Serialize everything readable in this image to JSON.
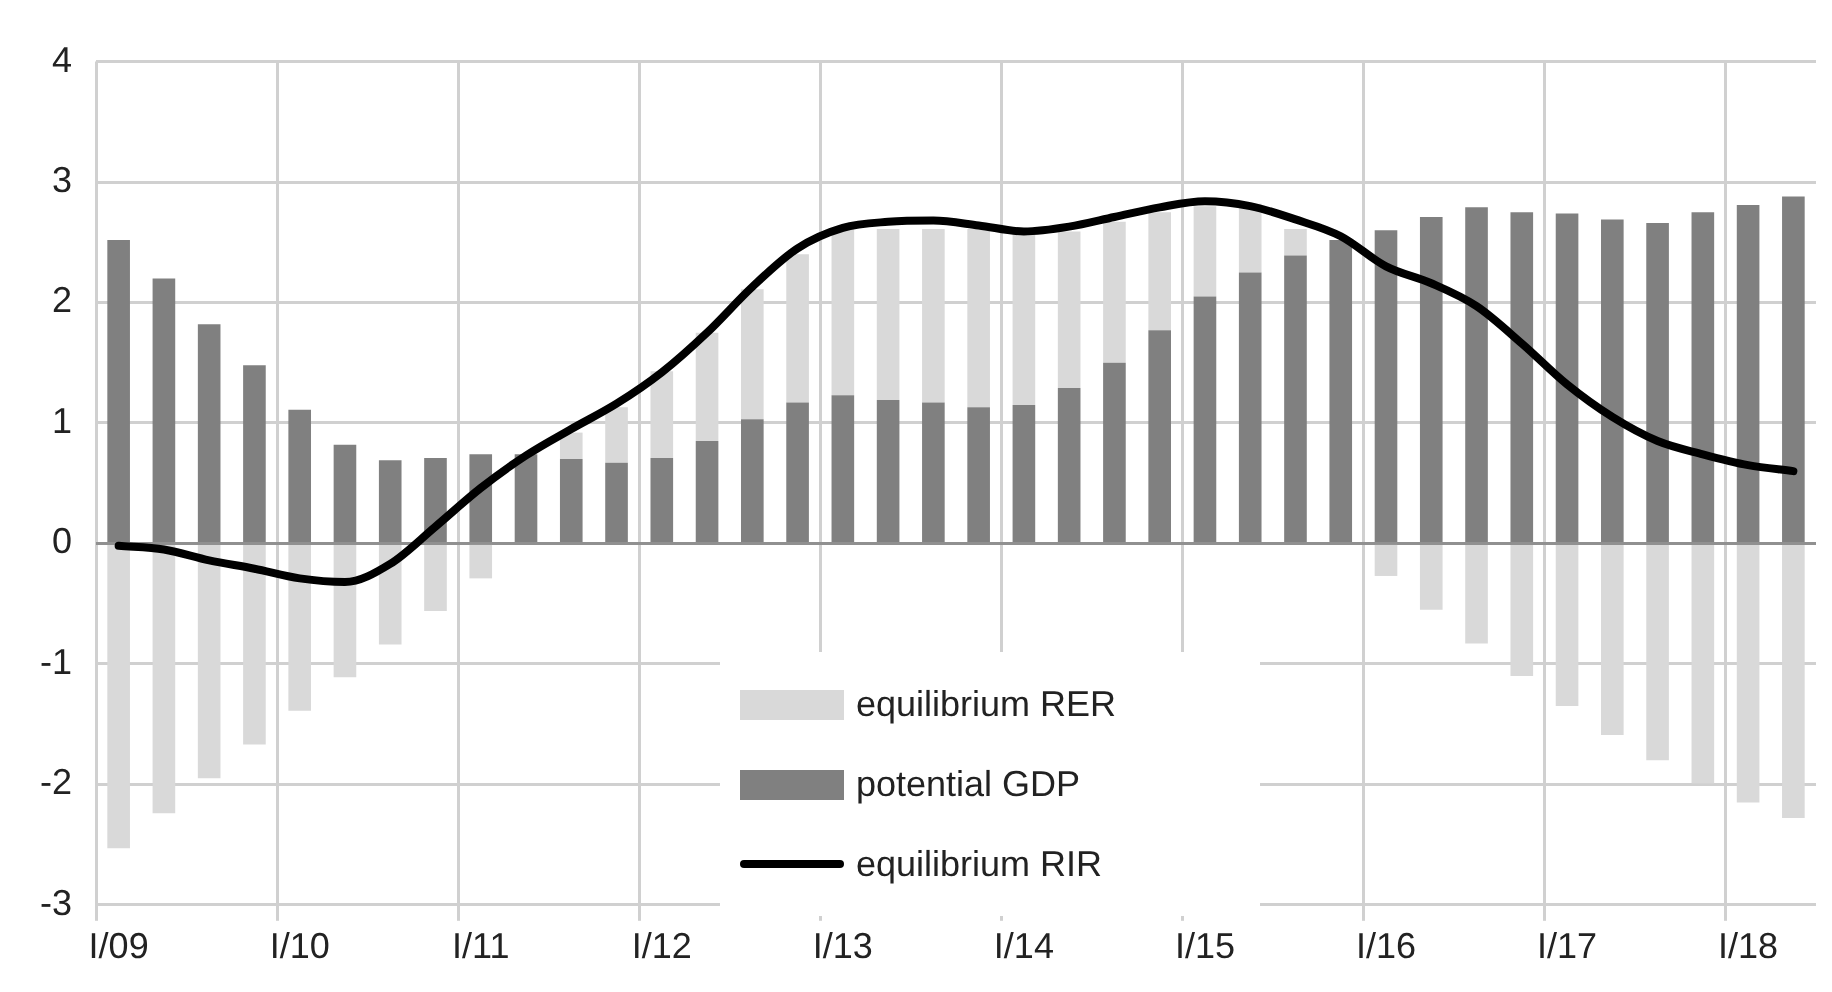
{
  "chart_data": {
    "type": "bar",
    "stacked": true,
    "categories": [
      "I/09",
      null,
      null,
      null,
      "I/10",
      null,
      null,
      null,
      "I/11",
      null,
      null,
      null,
      "I/12",
      null,
      null,
      null,
      "I/13",
      null,
      null,
      null,
      "I/14",
      null,
      null,
      null,
      "I/15",
      null,
      null,
      null,
      "I/16",
      null,
      null,
      null,
      "I/17",
      null,
      null,
      null,
      "I/18",
      null
    ],
    "series": [
      {
        "name": "potential GDP",
        "color": "#808080",
        "values": [
          2.52,
          2.2,
          1.82,
          1.48,
          1.11,
          0.82,
          0.69,
          0.71,
          0.74,
          0.74,
          0.7,
          0.67,
          0.71,
          0.85,
          1.03,
          1.17,
          1.23,
          1.19,
          1.17,
          1.13,
          1.15,
          1.29,
          1.5,
          1.77,
          2.05,
          2.25,
          2.39,
          2.52,
          2.6,
          2.71,
          2.79,
          2.75,
          2.74,
          2.69,
          2.66,
          2.75,
          2.81,
          2.88
        ]
      },
      {
        "name": "equilibrium RER",
        "color": "#d9d9d9",
        "values": [
          -2.53,
          -2.24,
          -1.95,
          -1.67,
          -1.39,
          -1.11,
          -0.84,
          -0.56,
          -0.29,
          null,
          0.22,
          0.46,
          0.72,
          0.9,
          1.08,
          1.23,
          1.38,
          1.42,
          1.44,
          1.48,
          1.46,
          1.3,
          1.17,
          0.98,
          0.75,
          0.57,
          0.22,
          0,
          -0.27,
          -0.55,
          -0.83,
          -1.1,
          -1.35,
          -1.59,
          -1.8,
          -1.99,
          -2.15,
          -2.28
        ]
      },
      {
        "name": "equilibrium RIR",
        "type": "line",
        "color": "#000000",
        "values": [
          -0.02,
          -0.05,
          -0.14,
          -0.21,
          -0.29,
          -0.32,
          -0.17,
          0.14,
          0.46,
          0.73,
          0.95,
          1.16,
          1.42,
          1.75,
          2.13,
          2.45,
          2.62,
          2.67,
          2.68,
          2.64,
          2.59,
          2.63,
          2.71,
          2.79,
          2.84,
          2.8,
          2.69,
          2.55,
          2.3,
          2.16,
          1.97,
          1.66,
          1.32,
          1.05,
          0.85,
          0.74,
          0.65,
          0.6
        ]
      }
    ],
    "ylim": [
      -3,
      4
    ],
    "yticks": [
      -3,
      -2,
      -1,
      0,
      1,
      2,
      3,
      4
    ],
    "grid": true,
    "legend": "bottom",
    "marker": "none"
  }
}
